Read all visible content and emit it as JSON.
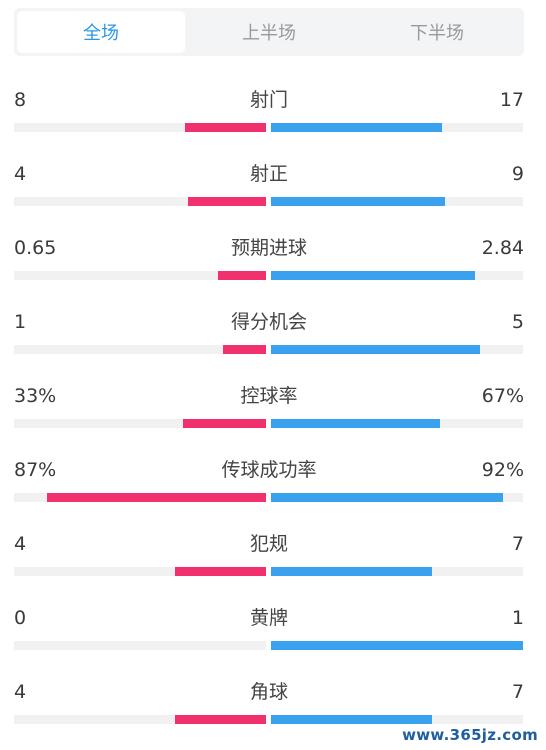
{
  "tabs": [
    {
      "label": "全场",
      "active": true
    },
    {
      "label": "上半场",
      "active": false
    },
    {
      "label": "下半场",
      "active": false
    }
  ],
  "colors": {
    "home_bar": "#f0316e",
    "away_bar": "#3aa1ee",
    "track": "#f1f1f1",
    "active_tab": "#2a98e8"
  },
  "stats": [
    {
      "label": "射门",
      "left": "8",
      "right": "17",
      "left_ratio": 0.32,
      "right_ratio": 0.68
    },
    {
      "label": "射正",
      "left": "4",
      "right": "9",
      "left_ratio": 0.31,
      "right_ratio": 0.69
    },
    {
      "label": "预期进球",
      "left": "0.65",
      "right": "2.84",
      "left_ratio": 0.19,
      "right_ratio": 0.81
    },
    {
      "label": "得分机会",
      "left": "1",
      "right": "5",
      "left_ratio": 0.17,
      "right_ratio": 0.83
    },
    {
      "label": "控球率",
      "left": "33%",
      "right": "67%",
      "left_ratio": 0.33,
      "right_ratio": 0.67
    },
    {
      "label": "传球成功率",
      "left": "87%",
      "right": "92%",
      "left_ratio": 0.87,
      "right_ratio": 0.92
    },
    {
      "label": "犯规",
      "left": "4",
      "right": "7",
      "left_ratio": 0.36,
      "right_ratio": 0.64
    },
    {
      "label": "黄牌",
      "left": "0",
      "right": "1",
      "left_ratio": 0.0,
      "right_ratio": 1.0
    },
    {
      "label": "角球",
      "left": "4",
      "right": "7",
      "left_ratio": 0.36,
      "right_ratio": 0.64
    }
  ],
  "watermark": "www.365jz.com"
}
